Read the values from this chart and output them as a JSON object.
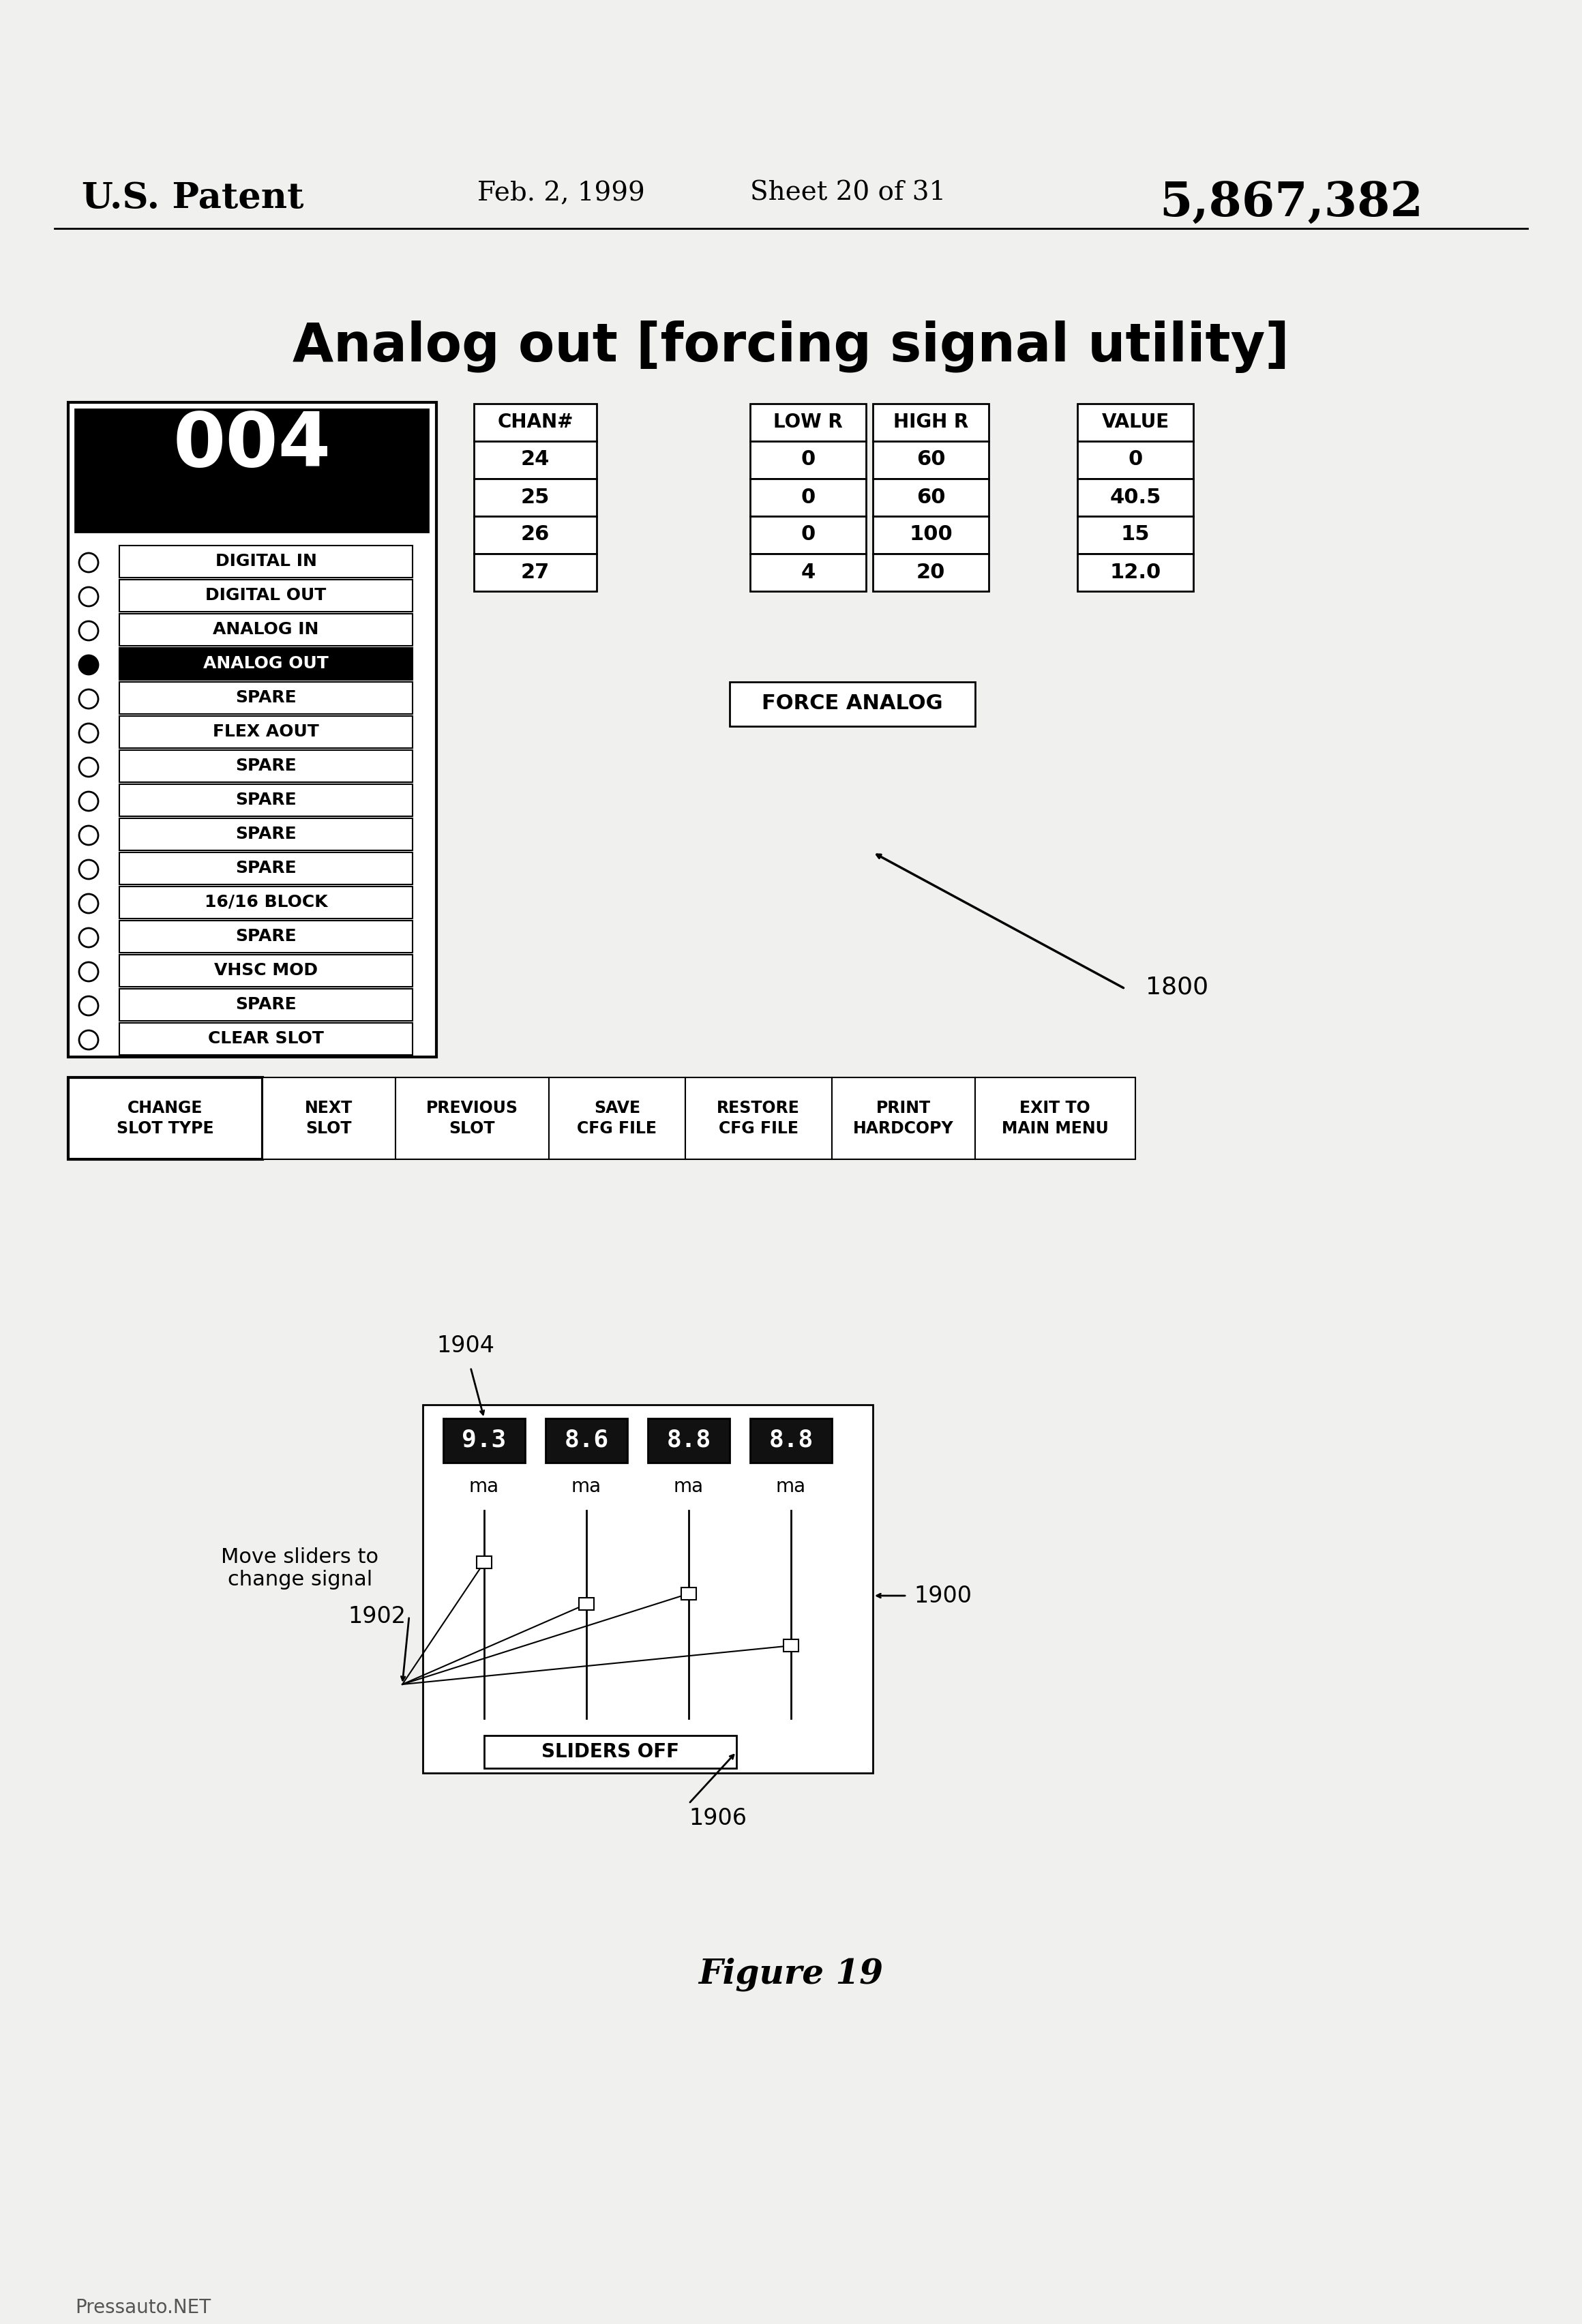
{
  "bg_color": "#f0f0ee",
  "patent_header": {
    "left": "U.S. Patent",
    "center_left": "Feb. 2, 1999",
    "center_right": "Sheet 20 of 31",
    "right": "5,867,382"
  },
  "main_title": "Analog out [forcing signal utility]",
  "chan_box": "004",
  "chan_header": "CHAN#",
  "chan_values": [
    "24",
    "25",
    "26",
    "27"
  ],
  "low_r_header": "LOW R",
  "high_r_header": "HIGH R",
  "value_header": "VALUE",
  "table_data": [
    {
      "low": "0",
      "high": "60",
      "value": "0"
    },
    {
      "low": "0",
      "high": "60",
      "value": "40.5"
    },
    {
      "low": "0",
      "high": "100",
      "value": "15"
    },
    {
      "low": "4",
      "high": "20",
      "value": "12.0"
    }
  ],
  "menu_items": [
    {
      "label": "DIGITAL IN",
      "selected": false
    },
    {
      "label": "DIGITAL OUT",
      "selected": false
    },
    {
      "label": "ANALOG IN",
      "selected": false
    },
    {
      "label": "ANALOG OUT",
      "selected": true
    },
    {
      "label": "SPARE",
      "selected": false
    },
    {
      "label": "FLEX AOUT",
      "selected": false
    },
    {
      "label": "SPARE",
      "selected": false
    },
    {
      "label": "SPARE",
      "selected": false
    },
    {
      "label": "SPARE",
      "selected": false
    },
    {
      "label": "SPARE",
      "selected": false
    },
    {
      "label": "16/16 BLOCK",
      "selected": false
    },
    {
      "label": "SPARE",
      "selected": false
    },
    {
      "label": "VHSC MOD",
      "selected": false
    },
    {
      "label": "SPARE",
      "selected": false
    },
    {
      "label": "CLEAR SLOT",
      "selected": false
    }
  ],
  "bottom_buttons": [
    "CHANGE\nSLOT TYPE",
    "NEXT\nSLOT",
    "PREVIOUS\nSLOT",
    "SAVE\nCFG FILE",
    "RESTORE\nCFG FILE",
    "PRINT\nHARDCOPY",
    "EXIT TO\nMAIN MENU"
  ],
  "force_analog_label": "FORCE ANALOG",
  "arrow_label_1800": "1800",
  "fig19_label": "Figure 19",
  "slider_values": [
    "9.3",
    "8.6",
    "8.8",
    "8.8"
  ],
  "slider_units": [
    "ma",
    "ma",
    "ma",
    "ma"
  ],
  "sliders_off_label": "SLIDERS OFF",
  "move_sliders_text": "Move sliders to\nchange signal",
  "watermark": "Pressauto.NET",
  "label_1904": "1904",
  "label_1902": "1902",
  "label_1900": "1900",
  "label_1906": "1906"
}
